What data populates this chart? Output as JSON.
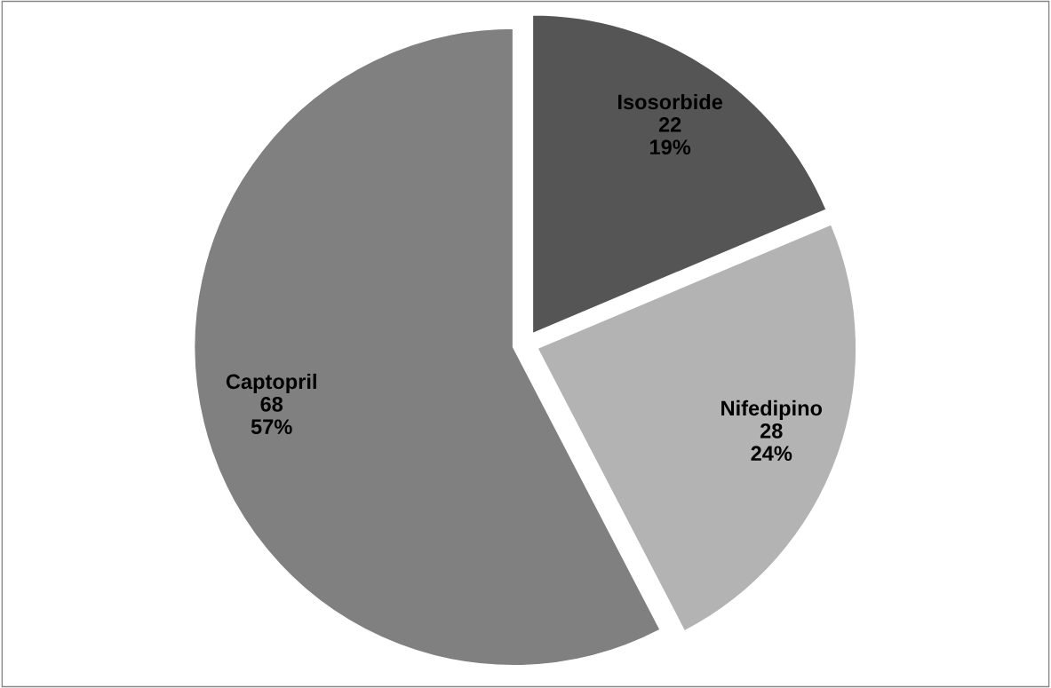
{
  "chart_data": {
    "type": "pie",
    "categories": [
      "Isosorbide",
      "Nifedipino",
      "Captopril"
    ],
    "values": [
      22,
      28,
      68
    ],
    "value_labels": [
      "22\n19%",
      "28\n24%",
      "68\n57%"
    ],
    "colors": [
      "#555555",
      "#b3b3b3",
      "#808080"
    ]
  }
}
